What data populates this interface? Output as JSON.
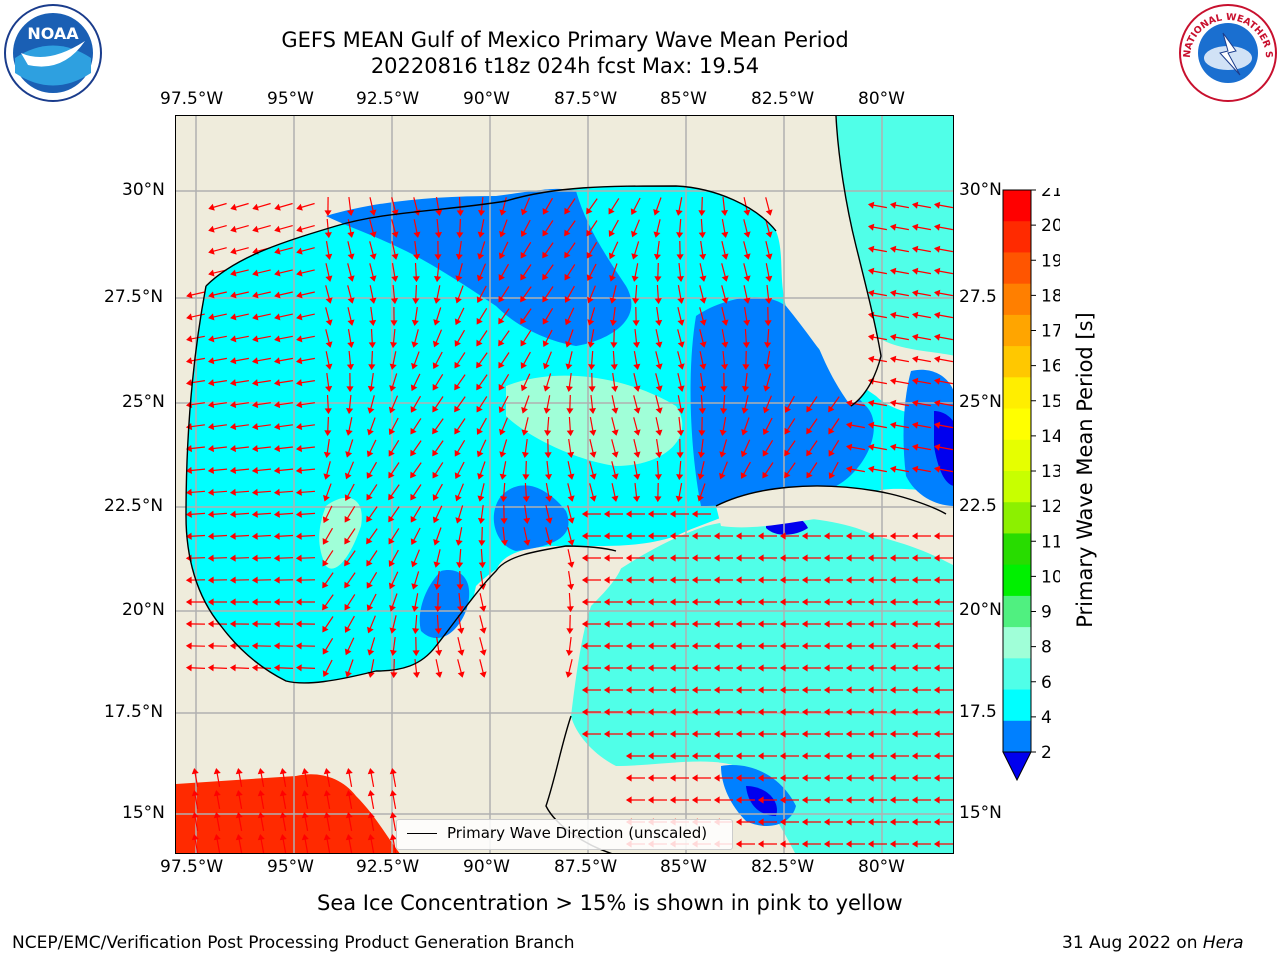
{
  "title": {
    "line1": "GEFS MEAN Gulf of Mexico Primary Wave Mean Period",
    "line2": "20220816 t18z 024h fcst   Max: 19.54"
  },
  "logos": {
    "left": "NOAA",
    "right": "NATIONAL WEATHER SERVICE"
  },
  "axes": {
    "lon_top": [
      "97.5°W",
      "95°W",
      "92.5°W",
      "90°W",
      "87.5°W",
      "85°W",
      "82.5°W",
      "80°W"
    ],
    "lon_bottom": [
      "97.5°W",
      "95°W",
      "92.5°W",
      "90°W",
      "87.5°W",
      "85°W",
      "82.5°W",
      "80°W"
    ],
    "lat_left": [
      "30°N",
      "27.5°N",
      "25°N",
      "22.5°N",
      "20°N",
      "17.5°N",
      "15°N"
    ],
    "lat_right": [
      "30°N",
      "27.5",
      "25°N",
      "22.5",
      "20°N",
      "17.5",
      "15°N"
    ]
  },
  "legend": {
    "label": "Primary Wave Direction (unscaled)"
  },
  "colorbar": {
    "label": "Primary Wave Mean Period [s]",
    "ticks": [
      "21",
      "20",
      "19",
      "18",
      "17",
      "16",
      "15",
      "14",
      "13",
      "12",
      "11",
      "10",
      "9",
      "8",
      "6",
      "4",
      "2"
    ],
    "colors": [
      "#ff0000",
      "#ff2a00",
      "#ff5500",
      "#ff7f00",
      "#ffa500",
      "#ffc800",
      "#ffee00",
      "#ffff00",
      "#e6ff00",
      "#c8ff00",
      "#8cf000",
      "#28dc00",
      "#00f000",
      "#50f080",
      "#a0ffd8",
      "#50ffe8",
      "#00ffff",
      "#0080ff"
    ],
    "extend_color": "#0000ee"
  },
  "map_colors": {
    "land": "#efecdc",
    "period_2_4": "#0080ff",
    "period_4_6": "#00ffff",
    "period_6_8": "#50ffe8",
    "period_8_9": "#a0ffd8",
    "period_under_2": "#0000ee",
    "period_19_20": "#ff2a00",
    "arrow": "#ff0000"
  },
  "caption": "Sea Ice Concentration > 15% is shown in pink to yellow",
  "footer": {
    "left": "NCEP/EMC/Verification Post Processing Product Generation Branch",
    "right_date": "31 Aug 2022 on ",
    "right_host": "Hera"
  }
}
